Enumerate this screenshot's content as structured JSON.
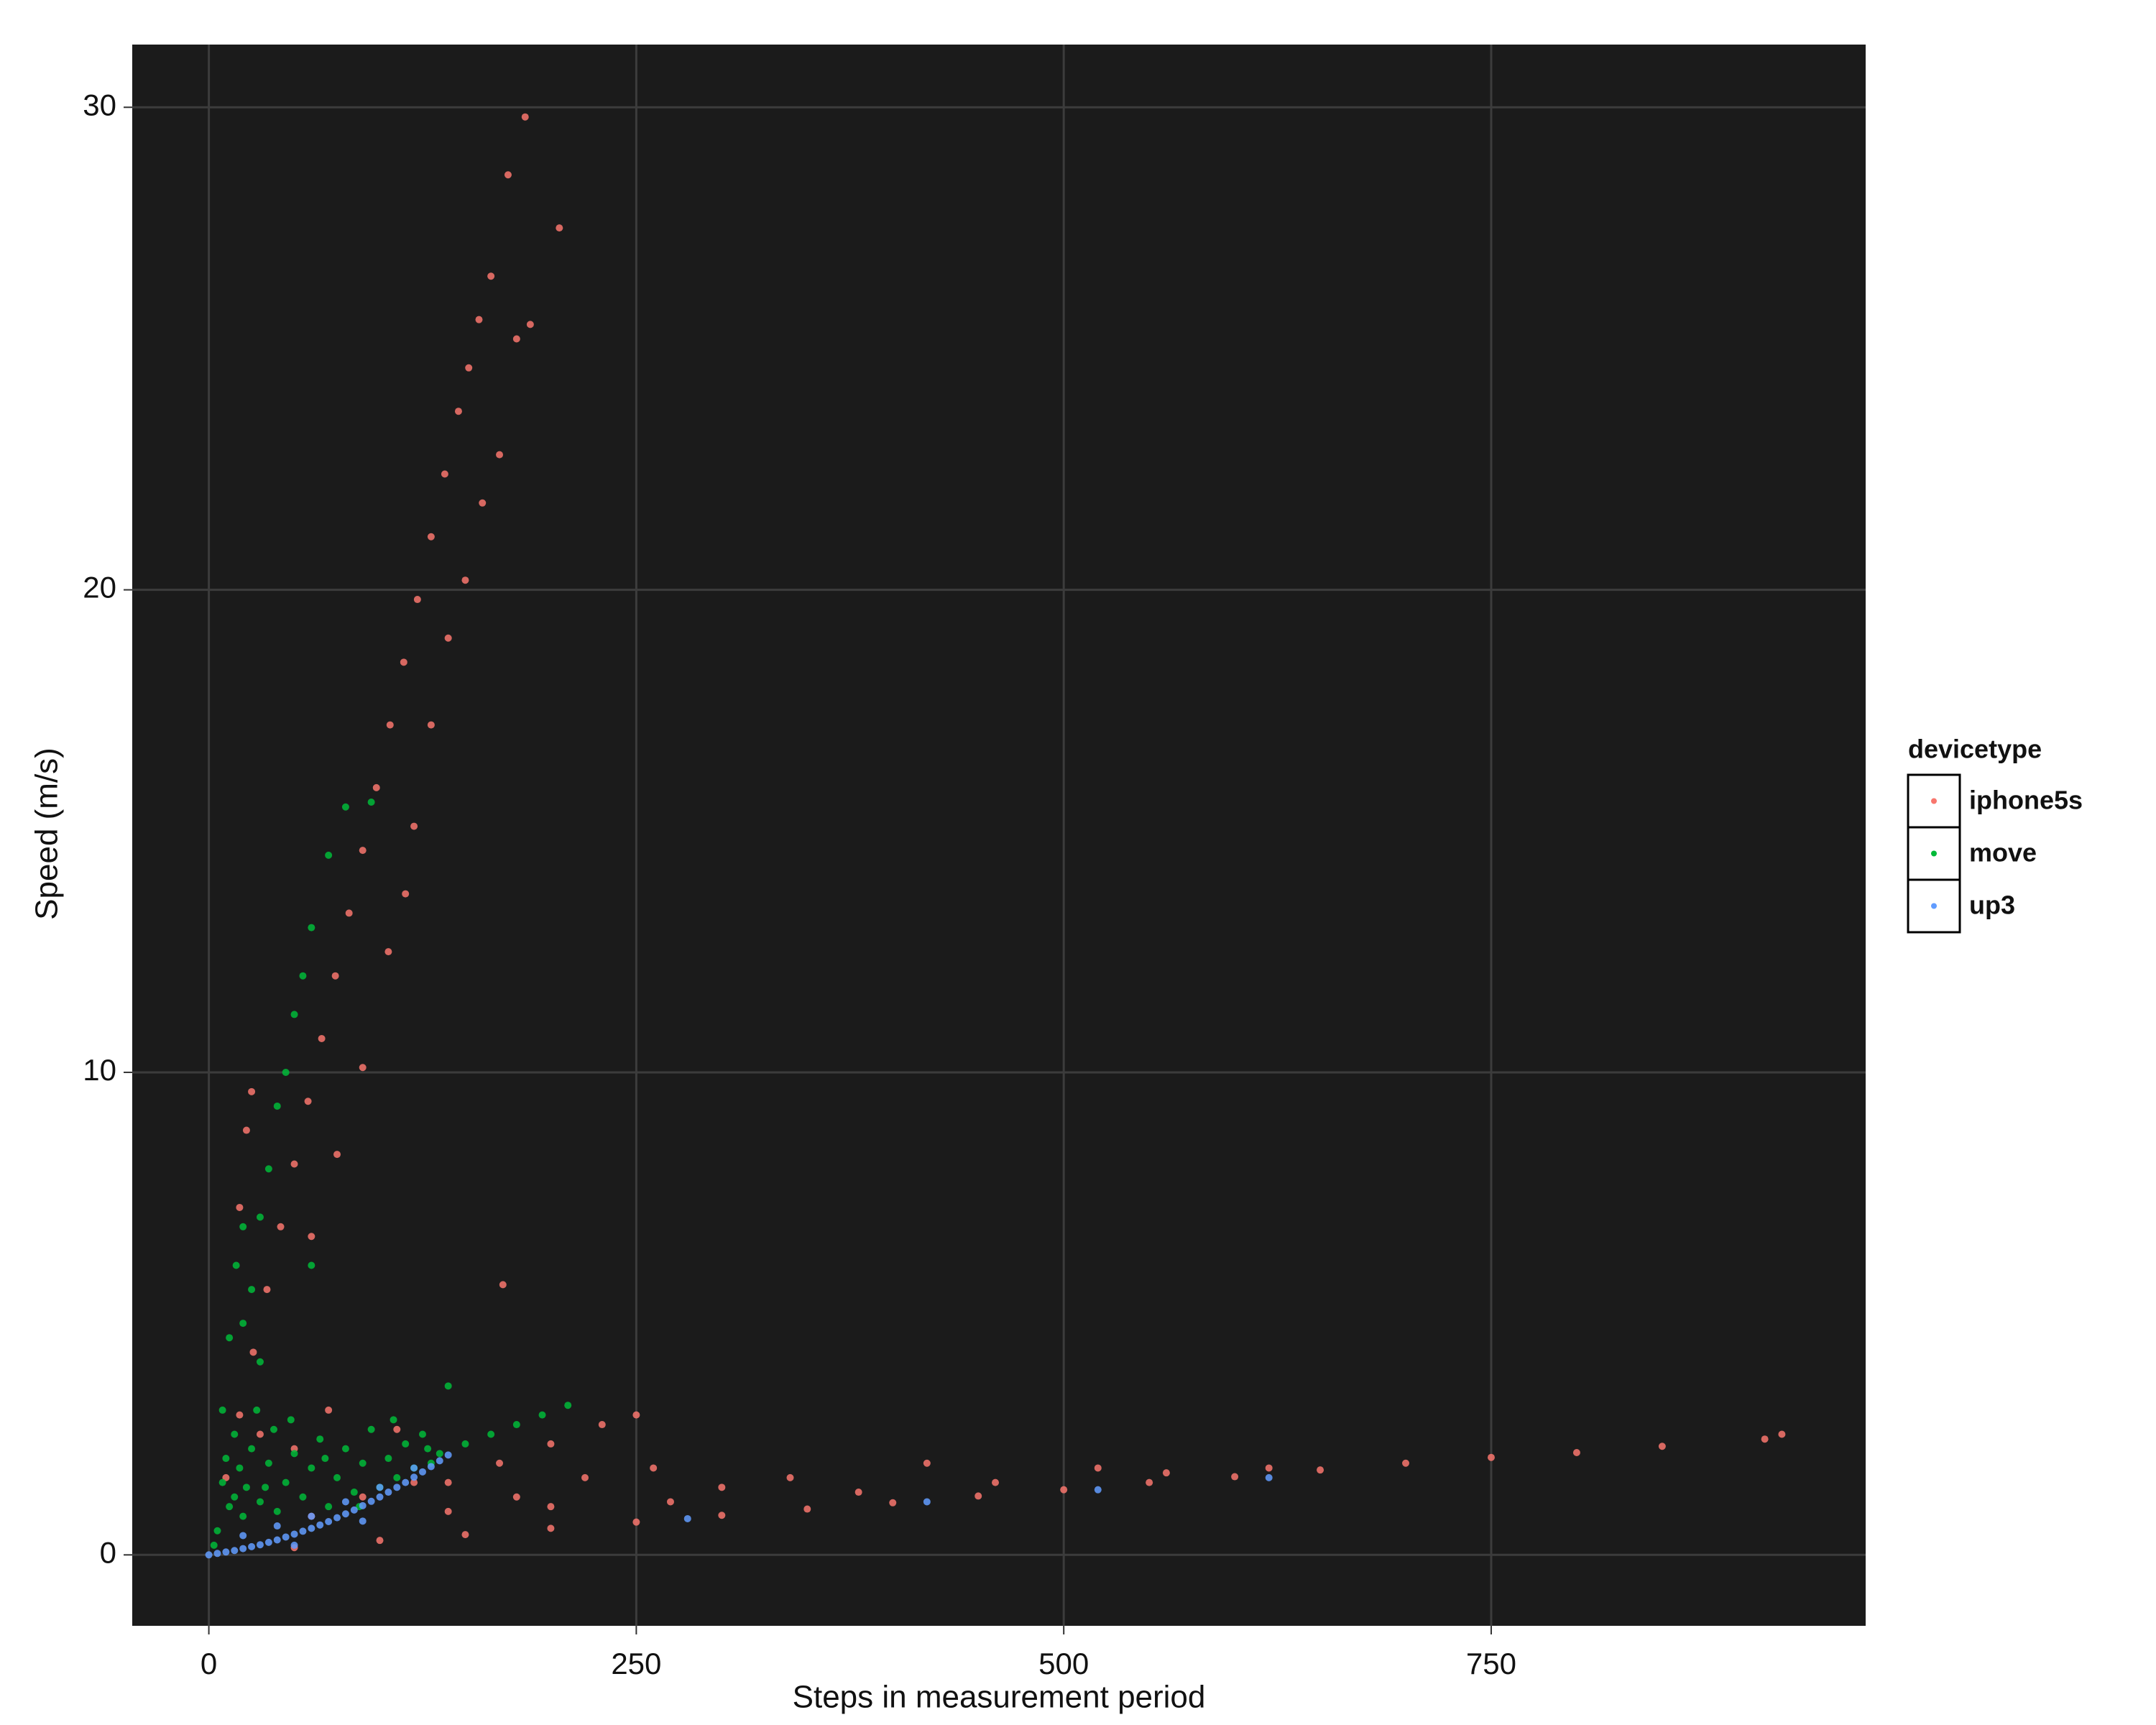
{
  "chart_data": {
    "type": "scatter",
    "x_label": "Steps in measurement period",
    "y_label": "Speed (m/s)",
    "legend_title": "devicetype",
    "legend_position": "right",
    "grid": true,
    "background": "#1b1b1b",
    "xlim": [
      -44.8,
      969
    ],
    "ylim": [
      -1.47,
      31.3
    ],
    "xticks": [
      0,
      250,
      500,
      750
    ],
    "yticks": [
      0,
      10,
      20,
      30
    ],
    "series": [
      {
        "name": "iphone5s",
        "color": "#F8766D",
        "x": [
          10,
          18,
          26,
          34,
          42,
          50,
          58,
          66,
          74,
          82,
          90,
          98,
          106,
          114,
          122,
          130,
          138,
          146,
          152,
          158,
          165,
          175,
          185,
          60,
          75,
          90,
          105,
          115,
          120,
          130,
          140,
          150,
          160,
          170,
          180,
          188,
          205,
          25,
          22,
          18,
          172,
          50,
          100,
          150,
          200,
          250,
          300,
          350,
          400,
          450,
          500,
          550,
          600,
          650,
          700,
          750,
          800,
          850,
          910,
          920,
          120,
          180,
          220,
          260,
          300,
          340,
          380,
          420,
          460,
          520,
          560,
          620,
          140,
          200,
          270,
          90,
          60,
          140,
          170,
          200,
          230,
          250,
          30,
          50,
          70,
          110
        ],
        "values": [
          1.6,
          2.9,
          4.2,
          5.5,
          6.8,
          8.1,
          9.4,
          10.7,
          12.0,
          13.3,
          14.6,
          15.9,
          17.2,
          18.5,
          19.8,
          21.1,
          22.4,
          23.7,
          24.6,
          25.6,
          26.5,
          28.6,
          29.8,
          6.6,
          8.3,
          10.1,
          12.5,
          13.7,
          15.1,
          17.2,
          19.0,
          20.2,
          21.8,
          22.8,
          25.2,
          25.5,
          27.5,
          9.6,
          8.8,
          7.2,
          5.6,
          0.15,
          0.3,
          0.42,
          0.55,
          0.68,
          0.82,
          0.95,
          1.08,
          1.22,
          1.35,
          1.5,
          1.62,
          1.76,
          1.9,
          2.02,
          2.12,
          2.25,
          2.4,
          2.5,
          1.5,
          1.2,
          1.6,
          1.8,
          1.4,
          1.6,
          1.3,
          1.9,
          1.5,
          1.8,
          1.7,
          1.8,
          0.9,
          1.0,
          1.1,
          1.2,
          0.8,
          1.5,
          1.9,
          2.3,
          2.7,
          2.9,
          2.5,
          2.2,
          3.0,
          2.6
        ]
      },
      {
        "name": "move",
        "color": "#00BA38",
        "x": [
          5,
          8,
          10,
          12,
          15,
          18,
          20,
          22,
          25,
          28,
          30,
          35,
          38,
          40,
          45,
          50,
          55,
          60,
          65,
          70,
          75,
          80,
          85,
          90,
          95,
          100,
          105,
          110,
          115,
          120,
          125,
          130,
          135,
          140,
          150,
          165,
          180,
          195,
          210,
          8,
          12,
          16,
          20,
          25,
          30,
          35,
          40,
          45,
          50,
          55,
          60,
          70,
          80,
          95,
          60,
          30,
          20,
          3,
          15,
          33,
          48,
          68,
          88,
          108,
          128
        ],
        "values": [
          0.5,
          1.5,
          2.0,
          1.0,
          2.5,
          1.8,
          0.8,
          1.4,
          2.2,
          3.0,
          1.1,
          1.9,
          2.6,
          0.9,
          1.5,
          2.1,
          1.2,
          1.8,
          2.4,
          1.0,
          1.6,
          2.2,
          1.3,
          1.9,
          2.6,
          1.4,
          2.0,
          1.6,
          2.3,
          1.8,
          2.5,
          1.9,
          2.1,
          3.5,
          2.3,
          2.5,
          2.7,
          2.9,
          3.1,
          3.0,
          4.5,
          6.0,
          6.8,
          5.5,
          7.0,
          8.0,
          9.3,
          10.0,
          11.2,
          12.0,
          13.0,
          14.5,
          15.5,
          15.6,
          6.0,
          4.0,
          4.8,
          0.2,
          1.2,
          1.4,
          2.8,
          2.0,
          1.0,
          2.8,
          2.2
        ]
      },
      {
        "name": "up3",
        "color": "#619CFF",
        "x": [
          0,
          5,
          10,
          15,
          20,
          25,
          30,
          35,
          40,
          45,
          50,
          55,
          60,
          65,
          70,
          75,
          80,
          85,
          90,
          95,
          100,
          105,
          110,
          115,
          120,
          125,
          130,
          135,
          140,
          20,
          40,
          60,
          80,
          100,
          120,
          50,
          90,
          280,
          420,
          520,
          620
        ],
        "values": [
          0,
          0.03,
          0.06,
          0.09,
          0.13,
          0.17,
          0.21,
          0.26,
          0.31,
          0.37,
          0.43,
          0.49,
          0.55,
          0.62,
          0.69,
          0.77,
          0.85,
          0.93,
          1.02,
          1.11,
          1.2,
          1.3,
          1.4,
          1.5,
          1.61,
          1.72,
          1.83,
          1.95,
          2.07,
          0.4,
          0.6,
          0.8,
          1.1,
          1.4,
          1.8,
          0.2,
          0.7,
          0.75,
          1.1,
          1.35,
          1.6
        ]
      }
    ]
  }
}
